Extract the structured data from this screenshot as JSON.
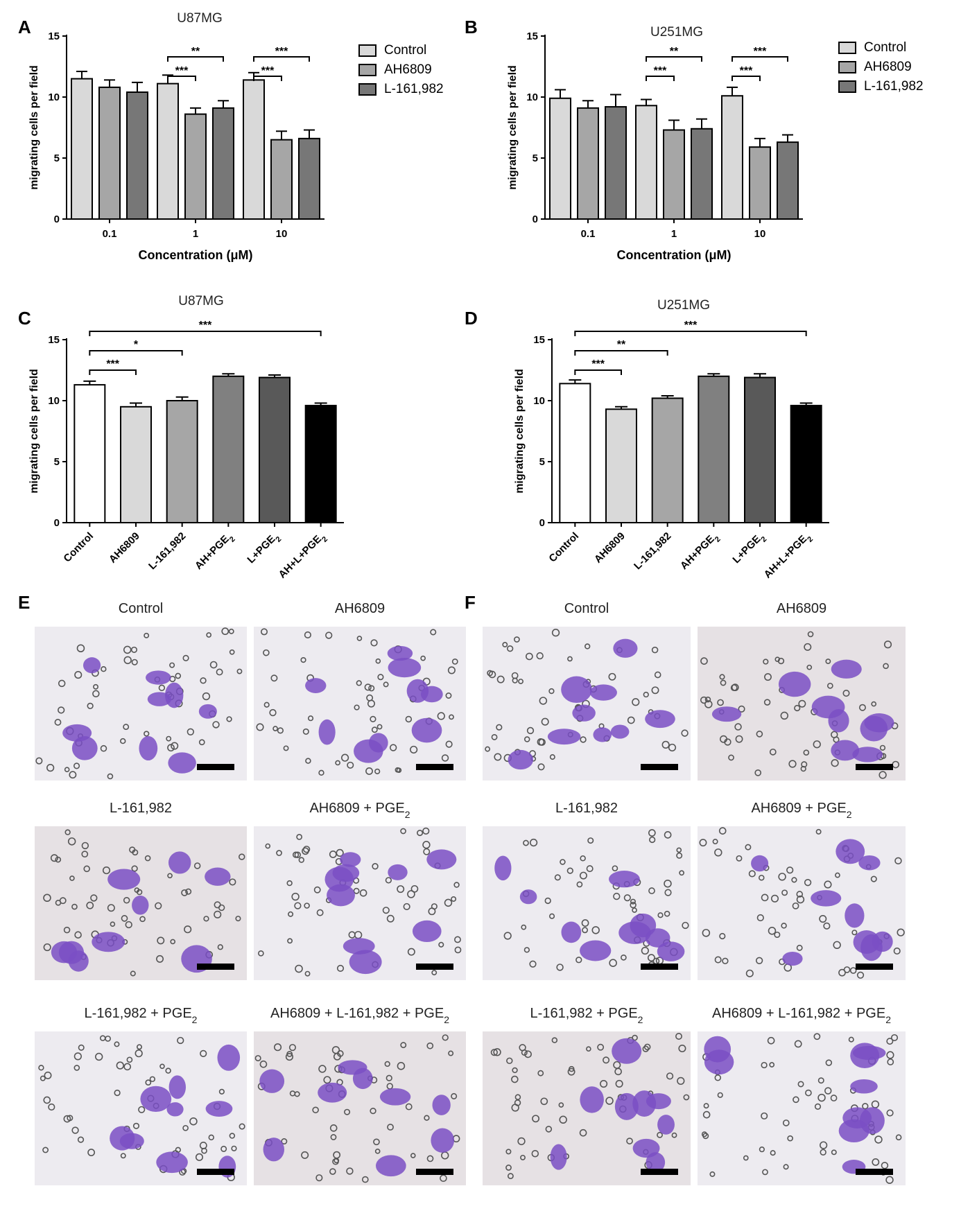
{
  "panels": {
    "a": "A",
    "b": "B",
    "c": "C",
    "d": "D",
    "e": "E",
    "f": "F"
  },
  "colors": {
    "control_light": "#d9d9d9",
    "ah_mid": "#a6a6a6",
    "l_dark": "#777777",
    "ah_dark2": "#808080",
    "l_dark3": "#595959",
    "combo_black": "#000000",
    "cell_purple": "#7a4fc4"
  },
  "chart_data": [
    {
      "id": "A",
      "type": "bar",
      "title": "U87MG",
      "xlabel": "Concentration (μM)",
      "ylabel": "migrating cells per field",
      "ylim": [
        0,
        15
      ],
      "yticks": [
        "0",
        "5",
        "10",
        "15"
      ],
      "categories": [
        "0.1",
        "1",
        "10"
      ],
      "series": [
        {
          "name": "Control",
          "values": [
            11.5,
            11.1,
            11.4
          ],
          "errors": [
            0.6,
            0.7,
            0.6
          ]
        },
        {
          "name": "AH6809",
          "values": [
            10.8,
            8.6,
            6.5
          ],
          "errors": [
            0.6,
            0.5,
            0.7
          ]
        },
        {
          "name": "L-161,982",
          "values": [
            10.4,
            9.1,
            6.6
          ],
          "errors": [
            0.8,
            0.6,
            0.7
          ]
        }
      ],
      "significance": [
        {
          "group": 1,
          "from": 0,
          "to": 1,
          "label": "***"
        },
        {
          "group": 1,
          "from": 0,
          "to": 2,
          "label": "**"
        },
        {
          "group": 2,
          "from": 0,
          "to": 1,
          "label": "***"
        },
        {
          "group": 2,
          "from": 0,
          "to": 2,
          "label": "***"
        }
      ],
      "legend": "right"
    },
    {
      "id": "B",
      "type": "bar",
      "title": "U251MG",
      "xlabel": "Concentration (μM)",
      "ylabel": "migrating cells per field",
      "ylim": [
        0,
        15
      ],
      "yticks": [
        "0",
        "5",
        "10",
        "15"
      ],
      "categories": [
        "0.1",
        "1",
        "10"
      ],
      "series": [
        {
          "name": "Control",
          "values": [
            9.9,
            9.3,
            10.1
          ],
          "errors": [
            0.7,
            0.5,
            0.7
          ]
        },
        {
          "name": "AH6809",
          "values": [
            9.1,
            7.3,
            5.9
          ],
          "errors": [
            0.6,
            0.8,
            0.7
          ]
        },
        {
          "name": "L-161,982",
          "values": [
            9.2,
            7.4,
            6.3
          ],
          "errors": [
            1.0,
            0.8,
            0.6
          ]
        }
      ],
      "significance": [
        {
          "group": 1,
          "from": 0,
          "to": 1,
          "label": "***"
        },
        {
          "group": 1,
          "from": 0,
          "to": 2,
          "label": "**"
        },
        {
          "group": 2,
          "from": 0,
          "to": 1,
          "label": "***"
        },
        {
          "group": 2,
          "from": 0,
          "to": 2,
          "label": "***"
        }
      ],
      "legend": "right"
    },
    {
      "id": "C",
      "type": "bar",
      "title": "U87MG",
      "ylabel": "migrating cells per field",
      "ylim": [
        0,
        15
      ],
      "yticks": [
        "0",
        "5",
        "10",
        "15"
      ],
      "categories": [
        "Control",
        "AH6809",
        "L-161,982",
        "AH+PGE",
        "L+PGE",
        "AH+L+PGE"
      ],
      "category_subscripts": [
        "",
        "",
        "",
        "2",
        "2",
        "2"
      ],
      "values": [
        11.3,
        9.5,
        10.0,
        12.0,
        11.9,
        9.6
      ],
      "errors": [
        0.3,
        0.3,
        0.3,
        0.2,
        0.2,
        0.2
      ],
      "significance": [
        {
          "from": 0,
          "to": 1,
          "label": "***"
        },
        {
          "from": 0,
          "to": 2,
          "label": "*"
        },
        {
          "from": 0,
          "to": 5,
          "label": "***"
        }
      ]
    },
    {
      "id": "D",
      "type": "bar",
      "title": "U251MG",
      "ylabel": "migrating cells per field",
      "ylim": [
        0,
        15
      ],
      "yticks": [
        "0",
        "5",
        "10",
        "15"
      ],
      "categories": [
        "Control",
        "AH6809",
        "L-161,982",
        "AH+PGE",
        "L+PGE",
        "AH+L+PGE"
      ],
      "category_subscripts": [
        "",
        "",
        "",
        "2",
        "2",
        "2"
      ],
      "values": [
        11.4,
        9.3,
        10.2,
        12.0,
        11.9,
        9.6
      ],
      "errors": [
        0.3,
        0.2,
        0.2,
        0.2,
        0.3,
        0.2
      ],
      "significance": [
        {
          "from": 0,
          "to": 1,
          "label": "***"
        },
        {
          "from": 0,
          "to": 2,
          "label": "**"
        },
        {
          "from": 0,
          "to": 5,
          "label": "***"
        }
      ]
    }
  ],
  "micrographs": {
    "E": [
      {
        "label": "Control",
        "sub": "",
        "tail": ""
      },
      {
        "label": "AH6809",
        "sub": "",
        "tail": ""
      },
      {
        "label": "L-161,982",
        "sub": "",
        "tail": ""
      },
      {
        "label": "AH6809 + PGE",
        "sub": "2",
        "tail": ""
      },
      {
        "label": "L-161,982 + PGE",
        "sub": "2",
        "tail": ""
      },
      {
        "label": "AH6809 + L-161,982 + PGE",
        "sub": "2",
        "tail": ""
      }
    ],
    "F": [
      {
        "label": "Control",
        "sub": "",
        "tail": ""
      },
      {
        "label": "AH6809",
        "sub": "",
        "tail": ""
      },
      {
        "label": "L-161,982",
        "sub": "",
        "tail": ""
      },
      {
        "label": "AH6809 + PGE",
        "sub": "2",
        "tail": ""
      },
      {
        "label": "L-161,982 + PGE",
        "sub": "2",
        "tail": ""
      },
      {
        "label": "AH6809 + L-161,982 + PGE",
        "sub": "2",
        "tail": ""
      }
    ]
  }
}
